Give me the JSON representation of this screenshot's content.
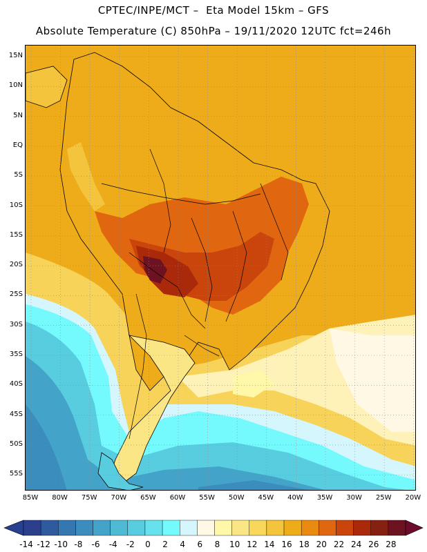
{
  "header": {
    "line1": "CPTEC/INPE/MCT –  Eta Model 15km – GFS",
    "line2": "Absolute Temperature (C) 850hPa – 19/11/2020 12UTC fct=246h"
  },
  "map": {
    "region": "South America",
    "lat_labels": [
      "15N",
      "10N",
      "5N",
      "EQ",
      "5S",
      "10S",
      "15S",
      "20S",
      "25S",
      "30S",
      "35S",
      "40S",
      "45S",
      "50S",
      "55S"
    ],
    "lon_labels": [
      "85W",
      "80W",
      "75W",
      "70W",
      "65W",
      "60W",
      "55W",
      "50W",
      "45W",
      "40W",
      "35W",
      "30W",
      "25W",
      "20W"
    ]
  },
  "colorbar": {
    "labels": [
      "-14",
      "-12",
      "-10",
      "-8",
      "-6",
      "-4",
      "-2",
      "0",
      "2",
      "4",
      "6",
      "8",
      "10",
      "12",
      "14",
      "16",
      "18",
      "20",
      "22",
      "24",
      "26",
      "28"
    ],
    "colors": [
      "#2b3f8c",
      "#2e5a9e",
      "#3577b0",
      "#3b8dbd",
      "#44a3c9",
      "#4fbad4",
      "#58cde0",
      "#66e2ee",
      "#74fafd",
      "#d6f6fd",
      "#fff8e4",
      "#fff8a8",
      "#fbe685",
      "#f8d75a",
      "#f3c43c",
      "#eeac18",
      "#e88b10",
      "#e06610",
      "#c9450c",
      "#a9290a",
      "#862010",
      "#6d1220"
    ],
    "left_end": "#27408f",
    "right_end": "#6e0a2a"
  },
  "colors": {
    "ocean_warm": "#eeab1a",
    "ocean_mid": "#f7d35a",
    "ocean_cool": "#fff2b8",
    "cold_south": "#58cde0",
    "very_cold": "#3b8dbd",
    "land_hot": "#c9450c",
    "land_hotter": "#a9290a",
    "land_max": "#6d1220"
  }
}
